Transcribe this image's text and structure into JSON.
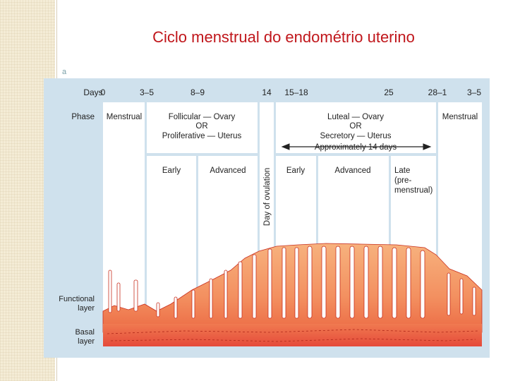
{
  "title": "Ciclo menstrual do endométrio uterino",
  "bullet_glyph": "a",
  "diagram": {
    "days_label": "Days",
    "days": [
      "0",
      "3–5",
      "8–9",
      "14",
      "15–18",
      "25",
      "28–1",
      "3–5"
    ],
    "phase_label": "Phase",
    "phases": {
      "menstrual": "Menstrual",
      "follicular": "Follicular — Ovary",
      "or1": "OR",
      "proliferative": "Proliferative — Uterus",
      "luteal": "Luteal — Ovary",
      "or2": "OR",
      "secretory": "Secretory — Uterus",
      "approx": "Approximately 14 days",
      "menstrual_end": "Menstrual"
    },
    "subphases": {
      "early1": "Early",
      "advanced1": "Advanced",
      "ovulation": "Day of ovulation",
      "early2": "Early",
      "advanced2": "Advanced",
      "late_line1": "Late",
      "late_line2": "(pre-",
      "late_line3": "menstrual)"
    },
    "layers": {
      "functional_line1": "Functional",
      "functional_line2": "layer",
      "basal_line1": "Basal",
      "basal_line2": "layer"
    },
    "colors": {
      "panel": "#cfe1ed",
      "functional": "#f4a070",
      "basal": "#e8503c",
      "outline": "#c83020"
    }
  }
}
